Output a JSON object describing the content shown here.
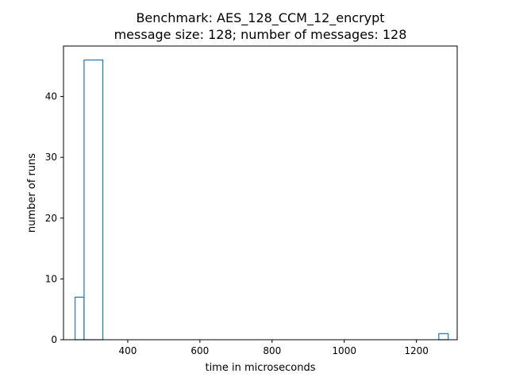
{
  "chart_data": {
    "type": "histogram",
    "title_line1": "Benchmark: AES_128_CCM_12_encrypt",
    "title_line2": "message size: 128; number of messages: 128",
    "xlabel": "time in microseconds",
    "ylabel": "number of runs",
    "xlim": [
      222,
      1313
    ],
    "ylim": [
      0,
      48.3
    ],
    "xticks": [
      400,
      600,
      800,
      1000,
      1200
    ],
    "yticks": [
      0,
      10,
      20,
      30,
      40
    ],
    "bins": [
      {
        "x0": 254,
        "x1": 279,
        "count": 7
      },
      {
        "x0": 279,
        "x1": 331,
        "count": 46
      },
      {
        "x0": 1262,
        "x1": 1288,
        "count": 1
      }
    ],
    "grid": false,
    "series_color": "#1f77b4"
  }
}
